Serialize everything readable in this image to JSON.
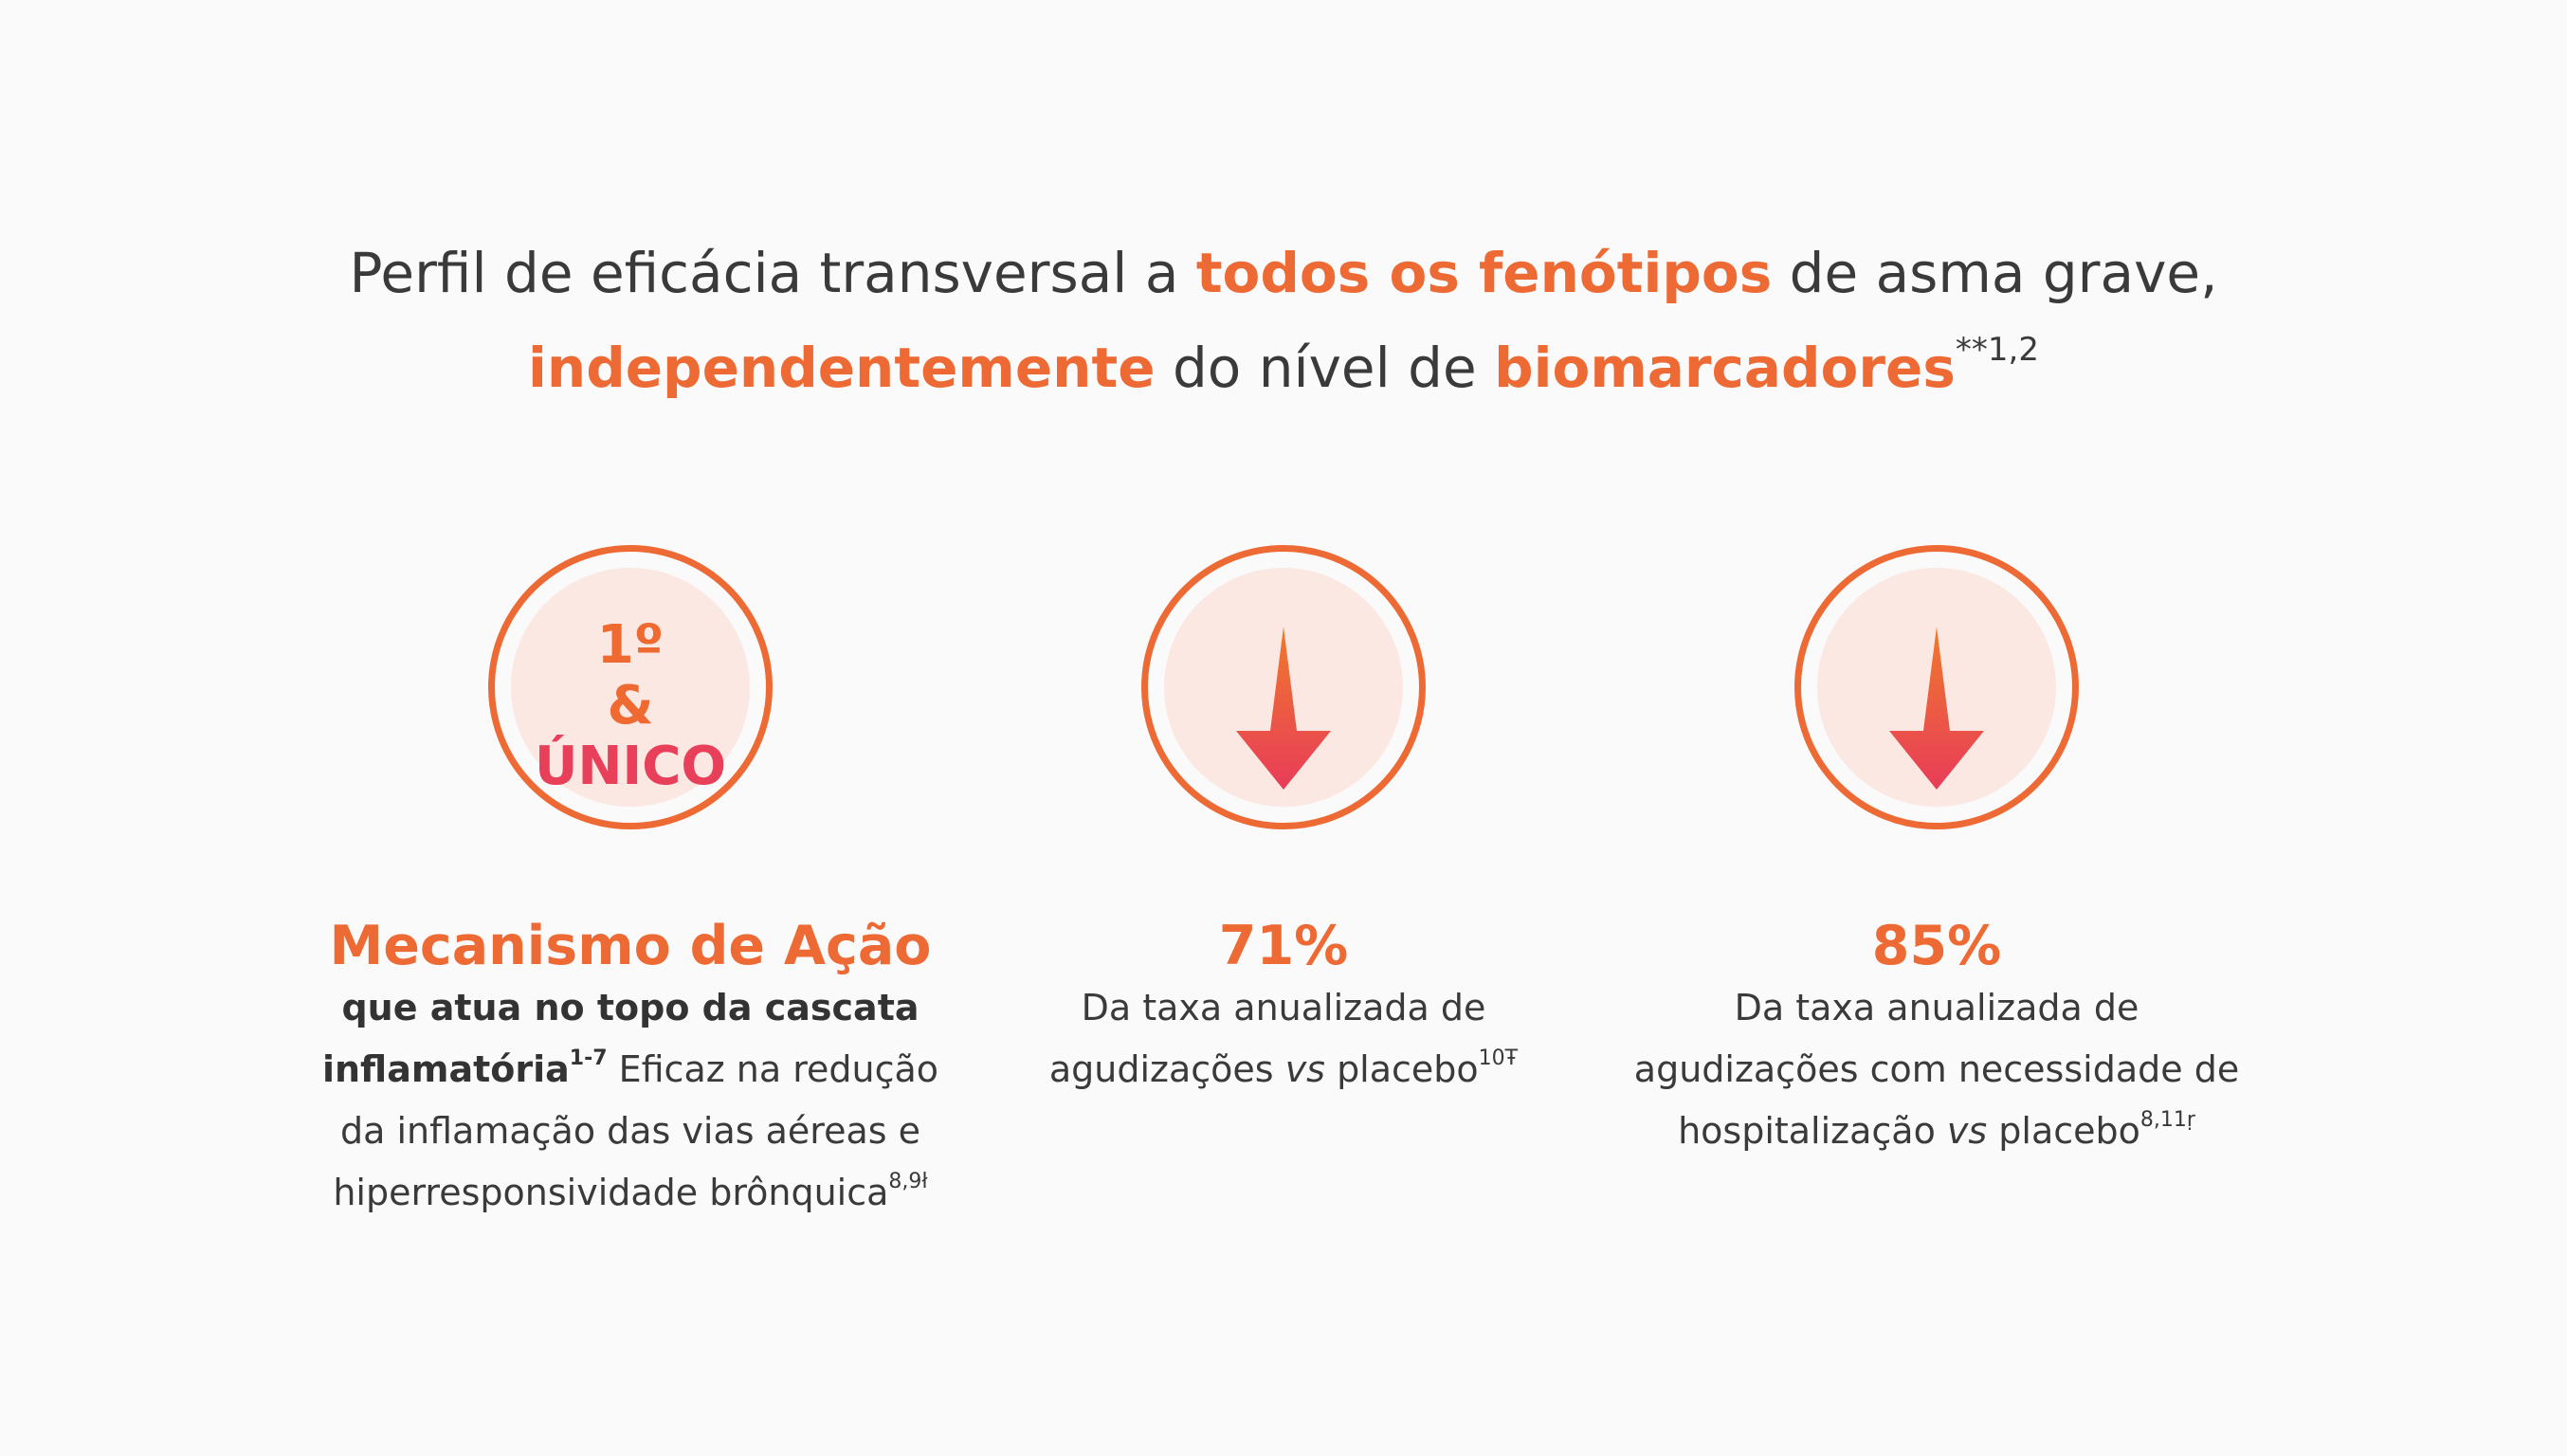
{
  "headline": {
    "line1_prefix": "Perfil de eficácia transversal a ",
    "line1_highlight": "todos os fenótipos",
    "line1_suffix": " de asma grave,",
    "line2_highlight1": "independentemente",
    "line2_mid": " do nível de ",
    "line2_highlight2": "biomarcadores",
    "line2_sup": "**1,2"
  },
  "colors": {
    "accent": "#ee6a35",
    "gradient_top": "#ef6b2d",
    "gradient_bottom": "#e8405a",
    "badge_fill": "#fbe8e3",
    "text": "#3a3a3a"
  },
  "features": [
    {
      "badge_line1": "1º",
      "badge_line2": "&",
      "badge_line3": "ÚNICO",
      "title": "Mecanismo de Ação",
      "body_bold1": "que atua no topo da cascata",
      "body_bold2": "inflamatória",
      "body_bold_sup": "1-7",
      "body_text1": " Eficaz na redução",
      "body_text2": "da inflamação das vias aéreas e",
      "body_text3": "hiperresponsividade brônquica",
      "body_sup": "8,9ł"
    },
    {
      "icon": "down-arrow-icon",
      "title": "71%",
      "body_text1": "Da taxa anualizada de",
      "body_text2a": "agudizações ",
      "body_italic": "vs",
      "body_text2b": " placebo",
      "body_sup": "10Ŧ"
    },
    {
      "icon": "down-arrow-icon",
      "title": "85%",
      "body_text1": "Da taxa anualizada de",
      "body_text2": "agudizações com necessidade de",
      "body_text3a": "hospitalização ",
      "body_italic": "vs",
      "body_text3b": " placebo",
      "body_sup": "8,11ṛ"
    }
  ]
}
